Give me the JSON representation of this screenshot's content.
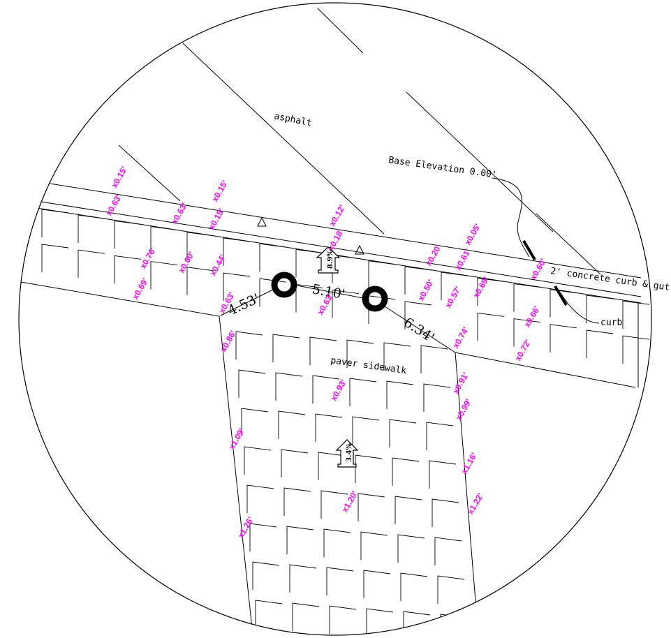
{
  "colors": {
    "line": "#000000",
    "spot_elevation": "#ff00ff",
    "background": "#ffffff"
  },
  "labels": {
    "asphalt": "asphalt",
    "base_elevation": "Base Elevation 0.00'",
    "concrete_curb": "2' concrete curb & gut",
    "curb": "curb",
    "paver_sidewalk": "paver sidewalk"
  },
  "dimensions": {
    "d1": "4.53'",
    "d2": "5.10'",
    "d3": "6.34'"
  },
  "slopes": {
    "s1": "8.9%",
    "s2": "3.4%"
  },
  "spot_elevations": [
    "x0.15'",
    "x0.63'",
    "x0.63'",
    "x0.15'",
    "x0.15'",
    "x0.12'",
    "x0.18'",
    "x0.05'",
    "x0.20'",
    "x0.61'",
    "x0.60'",
    "x0.76'",
    "x0.60'",
    "x0.44'",
    "x0.69'",
    "x0.63'",
    "x0.63'",
    "x0.50'",
    "x0.57'",
    "x0.69'",
    "x0.66'",
    "x0.86'",
    "x0.74'",
    "x0.72'",
    "x0.93'",
    "x0.91'",
    "x0.99'",
    "x1.09'",
    "x1.16'",
    "x1.20'",
    "x1.22'",
    "x1.26'"
  ]
}
